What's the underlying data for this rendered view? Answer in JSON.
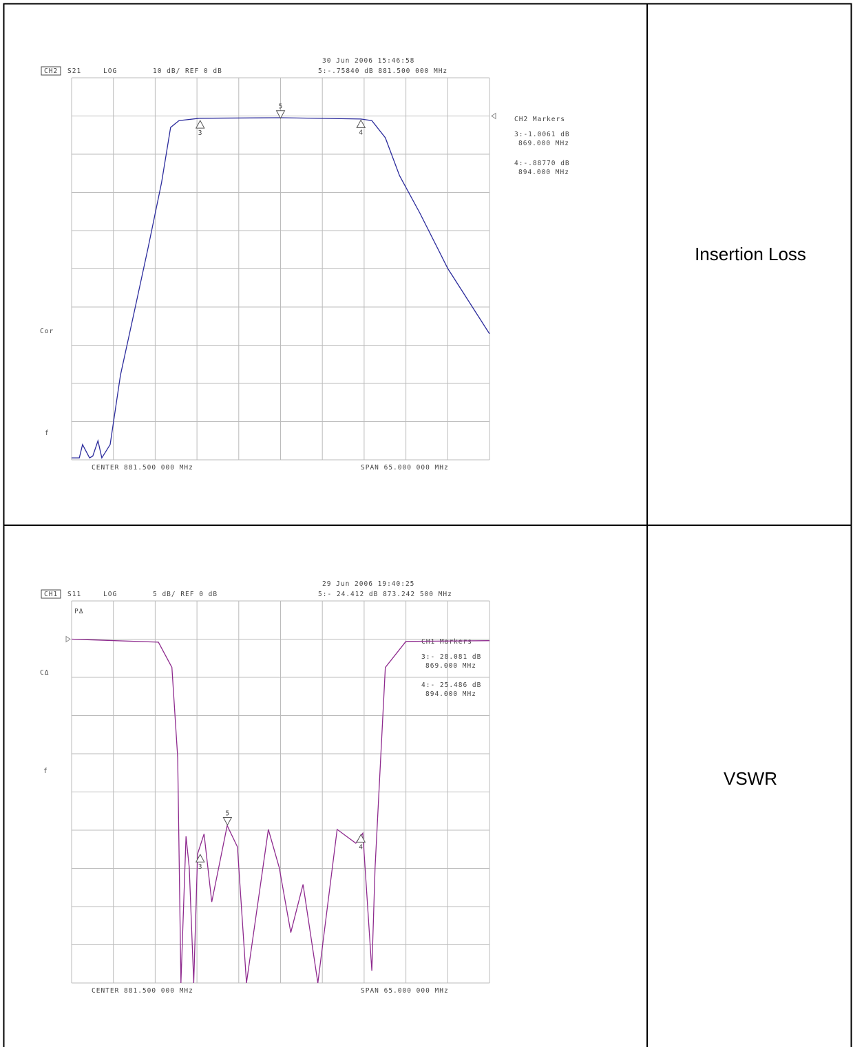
{
  "table": {
    "rows": [
      {
        "label": "Insertion Loss",
        "plot": {
          "type": "line",
          "channel": "CH2",
          "parameter": "S21",
          "format": "LOG",
          "scale": "10 dB/ REF 0 dB",
          "date": "30 Jun 2006   15:46:58",
          "readout": "5:-.75840 dB    881.500 000 MHz",
          "markers_title": "CH2 Markers",
          "side_labels": [
            "Cor",
            "f"
          ],
          "center": "CENTER  881.500 000 MHz",
          "span": "SPAN  65.000 000 MHz",
          "color": "#2b2b9c",
          "ref": 0,
          "xlim": [
            849,
            914
          ],
          "ylim": [
            -90,
            10
          ],
          "xticks": [
            849,
            855.5,
            862,
            868.5,
            875,
            881.5,
            888,
            894.5,
            901,
            907.5,
            914
          ],
          "yticks": [
            -90,
            -80,
            -70,
            -60,
            -50,
            -40,
            -30,
            -20,
            -10,
            0,
            10
          ],
          "x": [
            849,
            850.2,
            850.7,
            851.8,
            852.3,
            853.1,
            853.7,
            855,
            856.6,
            858.7,
            860.9,
            863,
            864.4,
            865.7,
            868.9,
            881.4,
            894,
            895.7,
            897.8,
            900,
            903.2,
            907.5,
            914
          ],
          "values": [
            -89.5,
            -89.5,
            -86,
            -89.5,
            -89,
            -85,
            -89.5,
            -86,
            -67.8,
            -51.6,
            -34.5,
            -17.4,
            -3,
            -1.2,
            -0.6,
            -0.45,
            -0.8,
            -1.2,
            -5.7,
            -15.6,
            -25.5,
            -39.9,
            -57
          ],
          "markers": [
            {
              "number": "3",
              "value": -1.0061,
              "freq": 869,
              "direction": "up",
              "readout": "3:-1.0061 dB",
              "freq_label": "869.000 MHz"
            },
            {
              "number": "4",
              "value": -0.8877,
              "freq": 894,
              "direction": "up",
              "readout": "4:-.88770 dB",
              "freq_label": "894.000 MHz"
            },
            {
              "number": "5",
              "value": -0.7584,
              "freq": 881.5,
              "direction": "down"
            }
          ]
        }
      },
      {
        "label": "VSWR",
        "plot": {
          "type": "line",
          "channel": "CH1",
          "parameter": "S11",
          "format": "LOG",
          "scale": "5 dB/ REF 0 dB",
          "date": "29 Jun 2006   19:40:25",
          "readout": "5:- 24.412 dB    873.242 500 MHz",
          "markers_title": "CH1 Markers",
          "side_labels": [
            "PΔ",
            "CΔ",
            "f"
          ],
          "center": "CENTER  881.500 000 MHz",
          "span": "SPAN  65.000 000 MHz",
          "color": "#8e2a8e",
          "ref": 0,
          "xlim": [
            849,
            914
          ],
          "ylim": [
            -45,
            5
          ],
          "xticks": [
            849,
            855.5,
            862,
            868.5,
            875,
            881.5,
            888,
            894.5,
            901,
            907.5,
            914
          ],
          "yticks": [
            -45,
            -40,
            -35,
            -30,
            -25,
            -20,
            -15,
            -10,
            -5,
            0,
            5
          ],
          "x": [
            849,
            862.5,
            864.6,
            865.5,
            866,
            866.8,
            867.3,
            868,
            868.6,
            869.6,
            870.8,
            873.2,
            874.8,
            876.2,
            879.6,
            881.3,
            883.1,
            885,
            887.3,
            890.3,
            893.2,
            894.3,
            895.7,
            896.2,
            897.8,
            901,
            914
          ],
          "values": [
            0,
            -0.4,
            -3.7,
            -15.5,
            -45,
            -25.8,
            -29.9,
            -45,
            -28.1,
            -25.5,
            -34.4,
            -24.4,
            -27.2,
            -45,
            -24.9,
            -29.9,
            -38.4,
            -32.1,
            -45,
            -24.9,
            -26.7,
            -25.4,
            -43.4,
            -29.9,
            -3.7,
            -0.3,
            -0.2
          ],
          "markers": [
            {
              "number": "3",
              "value": -28.081,
              "freq": 869,
              "direction": "up",
              "readout": "3:- 28.081 dB",
              "freq_label": "869.000 MHz"
            },
            {
              "number": "4",
              "value": -25.486,
              "freq": 894,
              "direction": "up",
              "readout": "4:- 25.486 dB",
              "freq_label": "894.000 MHz"
            },
            {
              "number": "5",
              "value": -24.412,
              "freq": 873.2425,
              "direction": "down"
            }
          ]
        }
      }
    ]
  }
}
